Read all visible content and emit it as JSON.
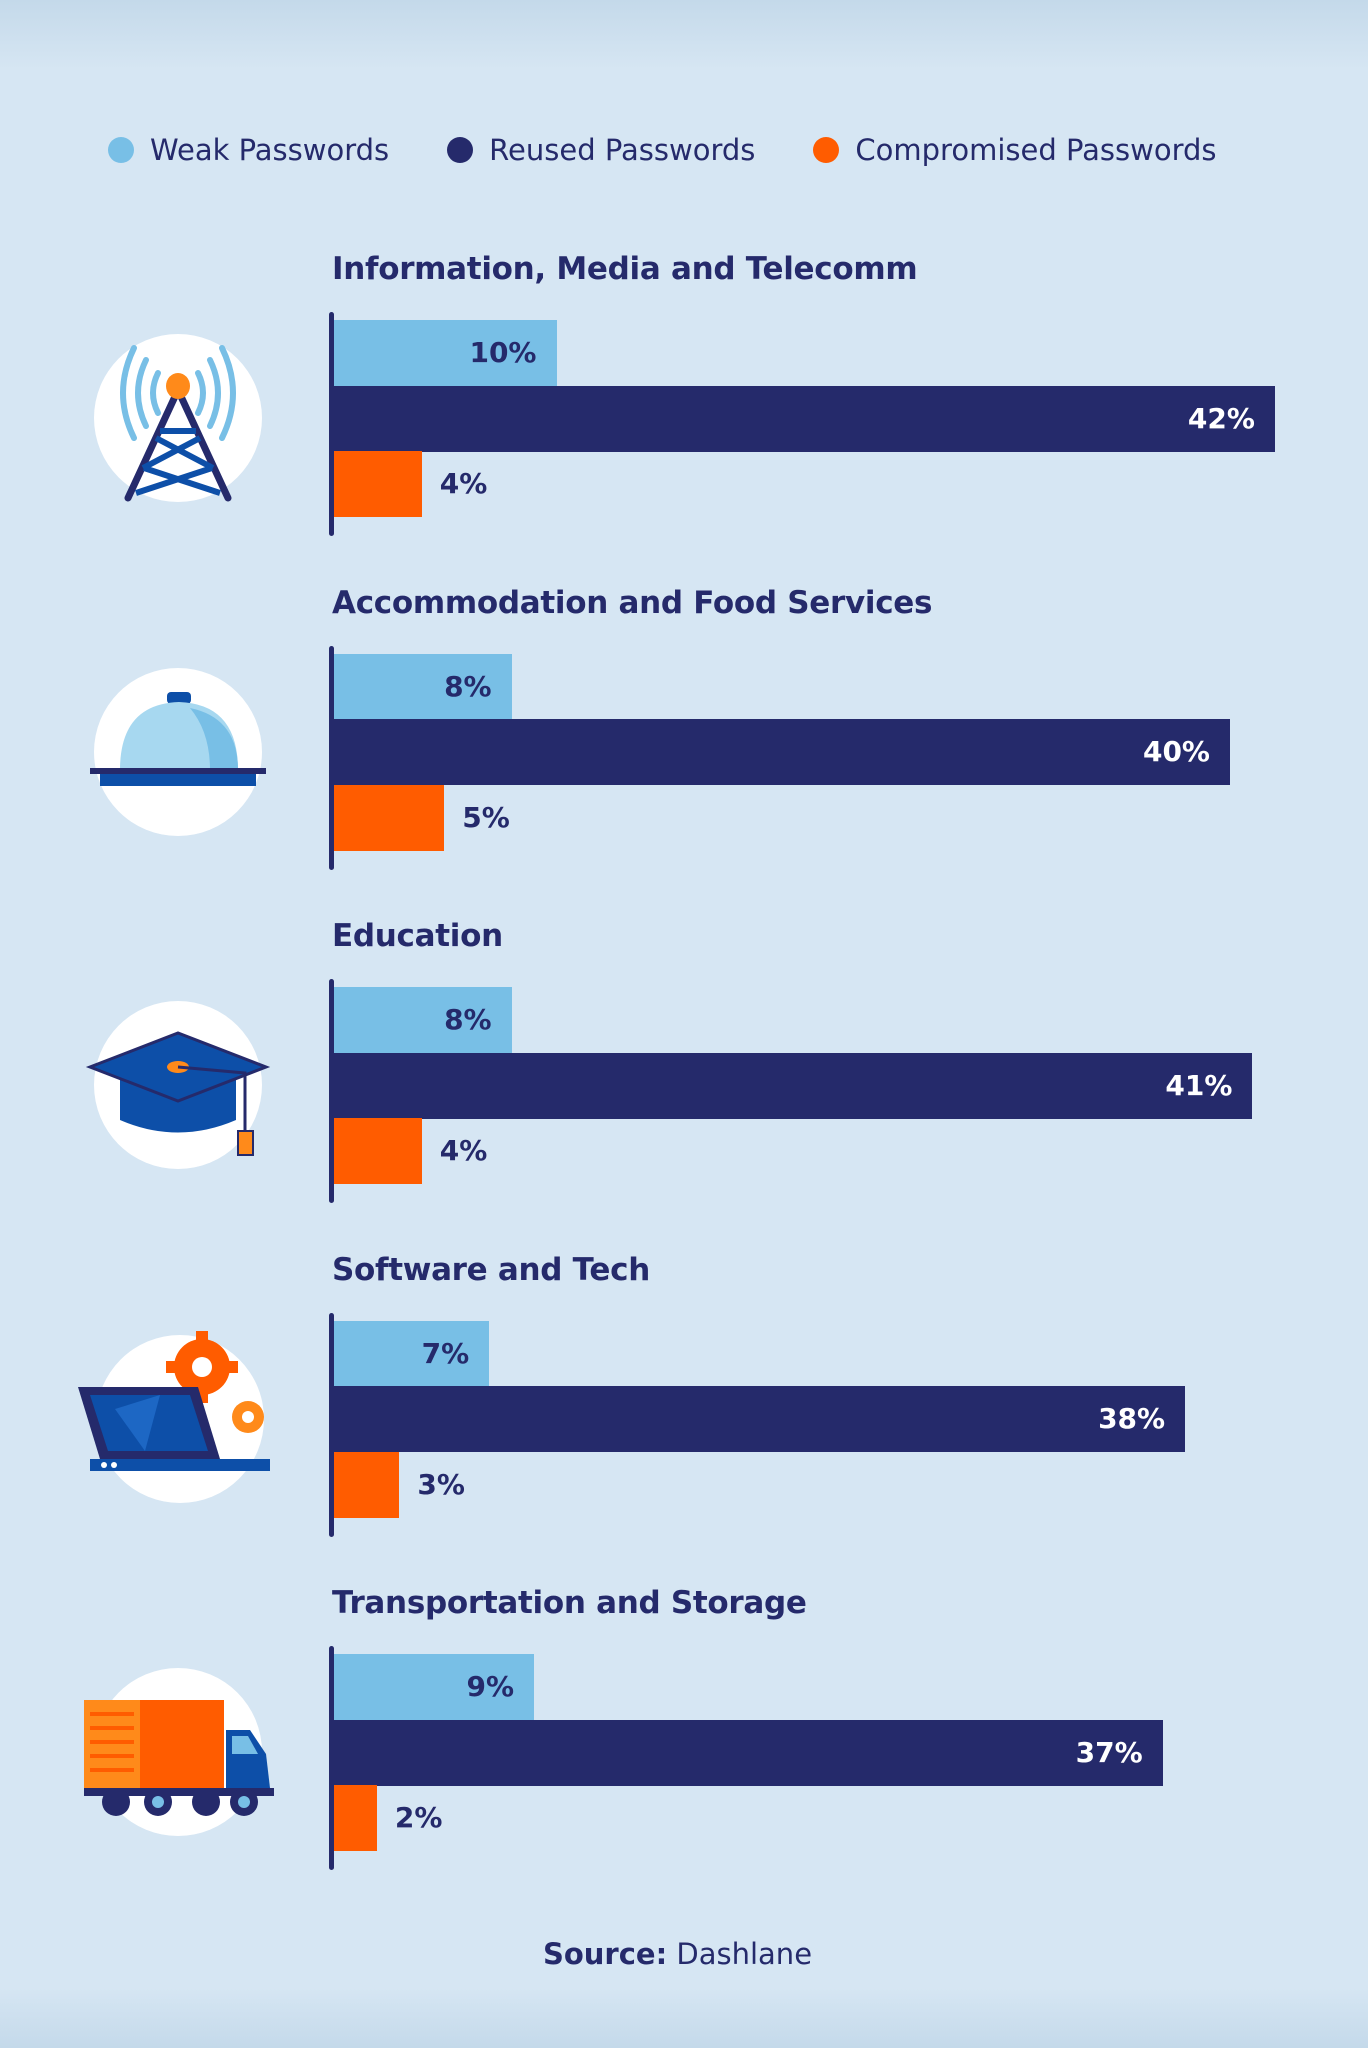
{
  "legend": [
    {
      "label": "Weak Passwords",
      "color": "#78bfe6"
    },
    {
      "label": "Reused Passwords",
      "color": "#252a6b"
    },
    {
      "label": "Compromised Passwords",
      "color": "#ff5c00"
    }
  ],
  "chart_data": {
    "type": "bar",
    "orientation": "horizontal",
    "categories": [
      "Information, Media and Telecomm",
      "Accommodation and Food Services",
      "Education",
      "Software and Tech",
      "Transportation and Storage"
    ],
    "series": [
      {
        "name": "Weak Passwords",
        "values": [
          10,
          8,
          8,
          7,
          9
        ],
        "color": "#78bfe6"
      },
      {
        "name": "Reused Passwords",
        "values": [
          42,
          40,
          41,
          38,
          37
        ],
        "color": "#252a6b"
      },
      {
        "name": "Compromised Passwords",
        "values": [
          4,
          5,
          4,
          3,
          2
        ],
        "color": "#ff5c00"
      }
    ],
    "value_suffix": "%",
    "legend_position": "top",
    "grid": false
  },
  "icons": [
    "cell-tower-icon",
    "food-cloche-icon",
    "graduation-cap-icon",
    "laptop-gears-icon",
    "delivery-truck-icon"
  ],
  "source": {
    "label": "Source:",
    "value": "Dashlane"
  }
}
